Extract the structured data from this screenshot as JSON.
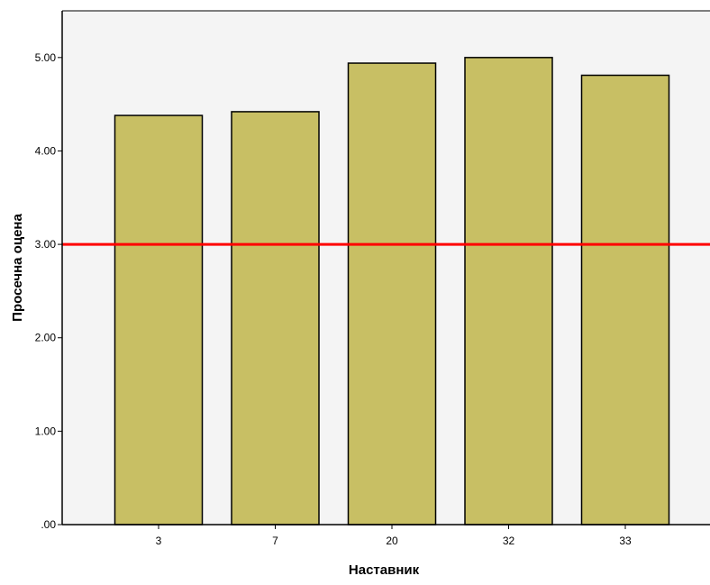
{
  "chart_data": {
    "type": "bar",
    "categories": [
      "3",
      "7",
      "20",
      "32",
      "33"
    ],
    "values": [
      4.38,
      4.42,
      4.94,
      5.0,
      4.81
    ],
    "xlabel": "Наставник",
    "ylabel": "Просечна оцена",
    "ylim": [
      0,
      5.5
    ],
    "yticks": [
      0,
      1,
      2,
      3,
      4,
      5
    ],
    "ytick_labels": [
      ".00",
      "1.00",
      "2.00",
      "3.00",
      "4.00",
      "5.00"
    ],
    "reference_line": {
      "y": 3.0,
      "color": "#ff0000"
    },
    "bar_color": "#c8bf64",
    "plot_background": "#f4f4f4",
    "grid": false,
    "legend": "none"
  }
}
